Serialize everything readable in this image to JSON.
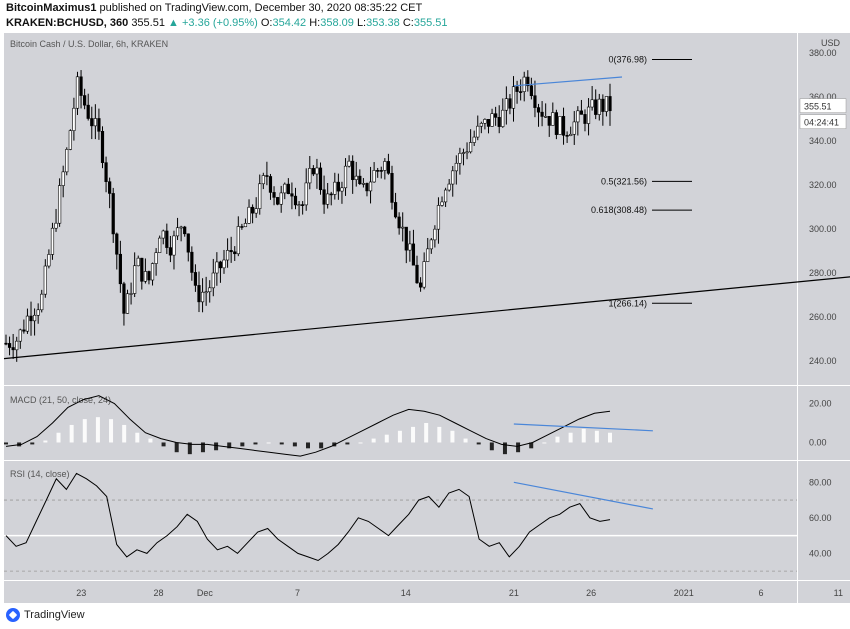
{
  "header": {
    "line1_user": "BitcoinMaximus1",
    "line1_rest": " published on TradingView.com, December 30, 2020 08:35:22 CET",
    "symbol": "KRAKEN:BCHUSD, 360",
    "last": "355.51",
    "change": "▲ +3.36 (+0.95%)",
    "ohlc_o_label": "O:",
    "ohlc_o": "354.42",
    "ohlc_h_label": "H:",
    "ohlc_h": "358.09",
    "ohlc_l_label": "L:",
    "ohlc_l": "353.38",
    "ohlc_c_label": "C:",
    "ohlc_c": "355.51"
  },
  "footer": {
    "brand": "TradingView"
  },
  "colors": {
    "pane_bg": "#d2d3d8",
    "candle_up": "#ffffff",
    "candle_down": "#000000",
    "trend_line": "#000000",
    "divergence_line": "#4a86d8",
    "price_badge": "#ffffff"
  },
  "chart_data": [
    {
      "type": "candlestick",
      "title": "Bitcoin Cash / U.S. Dollar, 6h, KRAKEN",
      "ylabel": "USD",
      "y_ticks": [
        "380.00",
        "360.00",
        "340.00",
        "320.00",
        "300.00",
        "280.00",
        "260.00",
        "240.00"
      ],
      "ylim": [
        229,
        389
      ],
      "x_ticks": [
        "23",
        "28",
        "Dec",
        "7",
        "14",
        "21",
        "26",
        "2021",
        "6",
        "11"
      ],
      "last_price": "355.51",
      "countdown": "04:24:41",
      "fib_levels": [
        {
          "label": "0(376.98)",
          "value": 376.98
        },
        {
          "label": "0.5(321.56)",
          "value": 321.56
        },
        {
          "label": "0.618(308.48)",
          "value": 308.48
        },
        {
          "label": "1(266.14)",
          "value": 266.14
        }
      ],
      "close_path": [
        248,
        250,
        262,
        268,
        300,
        330,
        365,
        352,
        340,
        305,
        260,
        285,
        275,
        300,
        292,
        305,
        270,
        272,
        282,
        290,
        300,
        310,
        325,
        312,
        320,
        310,
        330,
        312,
        318,
        330,
        315,
        325,
        330,
        308,
        290,
        272,
        300,
        320,
        330,
        338,
        345,
        350,
        352,
        362,
        370,
        355,
        350,
        345,
        348,
        352,
        356,
        355.51
      ],
      "trend_line": {
        "from": {
          "date": "Nov 18",
          "price": 241
        },
        "to": {
          "date": "Jan 13",
          "price": 279
        }
      },
      "divergence_line": {
        "from": {
          "date": "Dec 21",
          "price": 365
        },
        "to": {
          "date": "Dec 28",
          "price": 369
        }
      }
    },
    {
      "type": "line",
      "title": "MACD (21, 50, close, 24)",
      "y_ticks": [
        "20.00",
        "0.00"
      ],
      "series": [
        {
          "name": "MACD",
          "values": [
            -2,
            -1,
            3,
            10,
            18,
            22,
            24,
            20,
            12,
            5,
            2,
            0,
            -1,
            -1,
            -2,
            -3,
            -4,
            -5,
            -6,
            -7,
            -5,
            -2,
            2,
            6,
            10,
            14,
            17,
            16,
            14,
            10,
            6,
            2,
            -1,
            -2,
            0,
            4,
            8,
            12,
            15,
            16
          ]
        }
      ],
      "histogram": [
        -1,
        -2,
        -1,
        1,
        5,
        9,
        12,
        13,
        12,
        9,
        5,
        2,
        -2,
        -5,
        -6,
        -5,
        -4,
        -3,
        -2,
        -1,
        0,
        -1,
        -2,
        -3,
        -3,
        -2,
        -1,
        0,
        2,
        4,
        6,
        8,
        10,
        8,
        6,
        2,
        -1,
        -4,
        -6,
        -5,
        -3,
        0,
        3,
        5,
        7,
        6,
        5
      ],
      "divergence_line": {
        "from": {
          "date": "Dec 21",
          "value": 9.5
        },
        "to": {
          "date": "Dec 30",
          "value": 6.0
        }
      }
    },
    {
      "type": "line",
      "title": "RSI (14, close)",
      "y_ticks": [
        "80.00",
        "60.00",
        "40.00"
      ],
      "levels": [
        70,
        50,
        30
      ],
      "series": [
        {
          "name": "RSI",
          "values": [
            50,
            44,
            46,
            58,
            70,
            82,
            76,
            85,
            82,
            78,
            72,
            45,
            38,
            42,
            40,
            46,
            50,
            55,
            62,
            58,
            48,
            42,
            44,
            40,
            46,
            52,
            54,
            48,
            44,
            40,
            38,
            36,
            40,
            45,
            52,
            60,
            58,
            54,
            50,
            56,
            62,
            70,
            72,
            66,
            74,
            76,
            72,
            48,
            44,
            46,
            38,
            44,
            52,
            56,
            60,
            62,
            66,
            68,
            60,
            58,
            59
          ]
        }
      ],
      "divergence_line": {
        "from": {
          "date": "Dec 21",
          "value": 80
        },
        "to": {
          "date": "Dec 30",
          "value": 65
        }
      }
    }
  ]
}
